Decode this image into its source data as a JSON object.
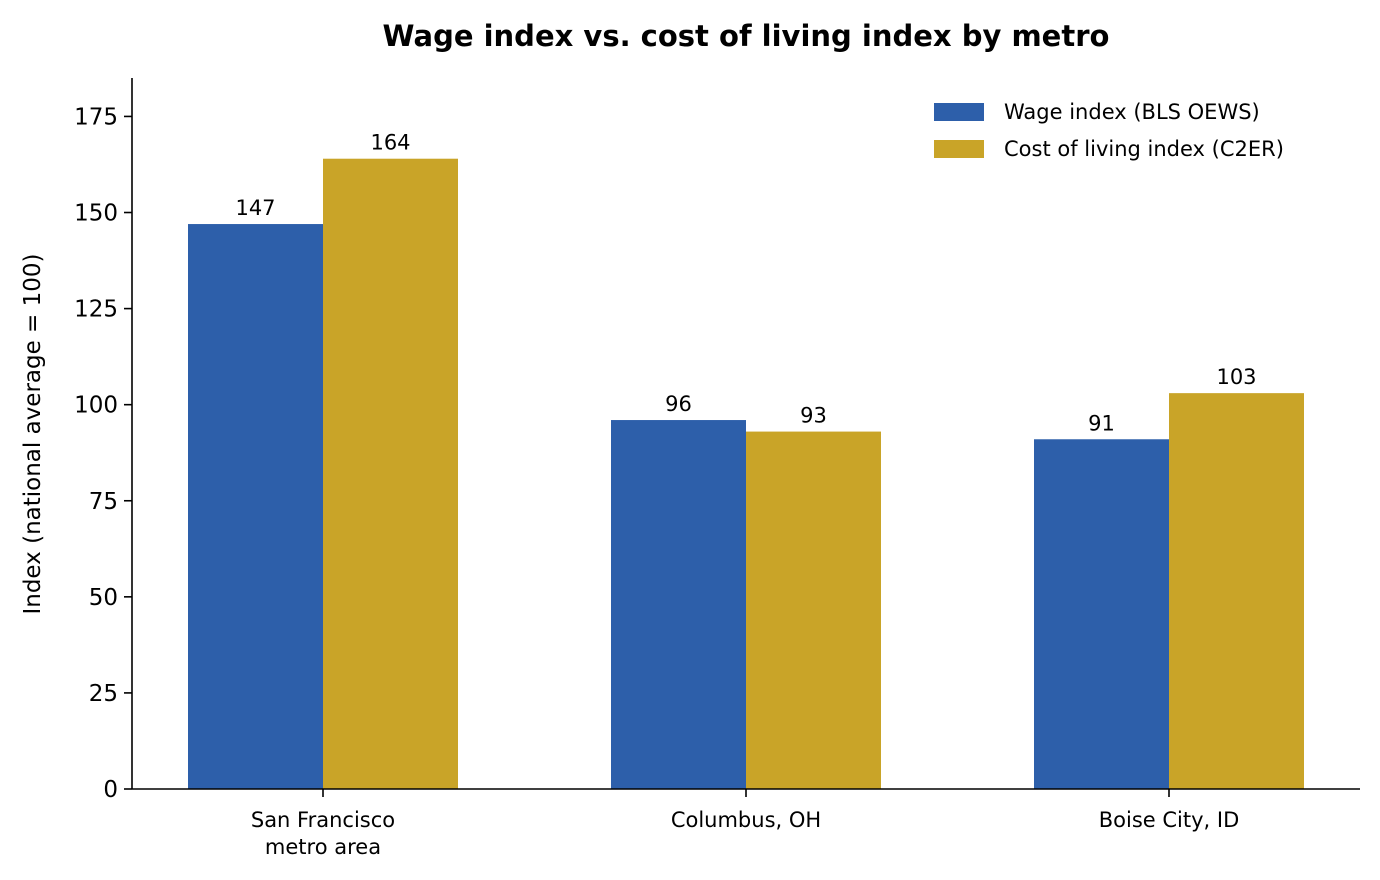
{
  "chart_data": {
    "type": "bar",
    "title": "Wage index vs. cost of living index by metro",
    "xlabel": "",
    "ylabel": "Index (national average = 100)",
    "categories": [
      [
        "San Francisco",
        "metro area"
      ],
      [
        "Columbus, OH"
      ],
      [
        "Boise City, ID"
      ]
    ],
    "series": [
      {
        "name": "Wage index (BLS OEWS)",
        "color": "#2d5faa",
        "values": [
          147,
          96,
          91
        ],
        "labels": [
          "147",
          "96",
          "91"
        ]
      },
      {
        "name": "Cost of living index (C2ER)",
        "color": "#c9a428",
        "values": [
          164,
          93,
          103
        ],
        "labels": [
          "164",
          "93",
          "103"
        ]
      }
    ],
    "ylim": [
      0,
      185
    ],
    "yticks": [
      0,
      25,
      50,
      75,
      100,
      125,
      150,
      175
    ],
    "ytick_labels": [
      "0",
      "25",
      "50",
      "75",
      "100",
      "125",
      "150",
      "175"
    ],
    "grid": false,
    "legend_position": "top-right"
  }
}
